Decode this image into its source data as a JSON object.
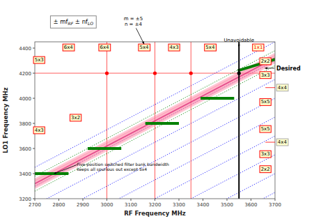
{
  "chart_data": {
    "type": "spur_chart",
    "xlabel": "RF Frequency MHz",
    "ylabel": "LO1 Frequency MHz",
    "xlim": [
      2700,
      3700
    ],
    "ylim": [
      3200,
      4450
    ],
    "xticks": [
      2700,
      2800,
      2900,
      3000,
      3100,
      3200,
      3300,
      3400,
      3500,
      3600,
      3700
    ],
    "yticks": [
      3200,
      3400,
      3600,
      3800,
      4000,
      4200,
      4400
    ],
    "grid": false,
    "box_face": "#ffffcc",
    "blue_lines": {
      "color": "blue",
      "line_style": "dotted",
      "offsets": [
        -450,
        -300,
        -150,
        0,
        150,
        300,
        450,
        600,
        750
      ]
    },
    "green_lines": {
      "color": "green",
      "line_style": "dotted",
      "offsets": [
        560,
        680
      ]
    },
    "pink_band": {
      "color": "#ff80a0",
      "offsets": [
        590,
        605,
        620,
        635,
        650
      ]
    },
    "center_line": {
      "color": "#cc0066",
      "offset": 620
    },
    "filter_segments": {
      "color": "green",
      "segments": [
        [
          2700,
          3400,
          2840,
          3400
        ],
        [
          2920,
          3600,
          3060,
          3600
        ],
        [
          3160,
          3800,
          3300,
          3800
        ],
        [
          3390,
          4000,
          3530,
          4000
        ],
        [
          3545,
          4220,
          3700,
          4310
        ]
      ]
    },
    "hline": {
      "color": "red",
      "y": 4200
    },
    "red_vlines": {
      "color": "red",
      "x": [
        3000,
        3200,
        3350
      ]
    },
    "vertical_line": {
      "color": "black",
      "x": 3550
    },
    "red_dots": {
      "color": "red",
      "points": [
        [
          3000,
          4200
        ],
        [
          3200,
          4200
        ],
        [
          3350,
          4200
        ]
      ]
    },
    "black_dot": {
      "color": "black",
      "point": [
        3550,
        4200
      ]
    },
    "box_labels": [
      {
        "text": "6x4",
        "x": 2840,
        "y": 4405,
        "color": "red"
      },
      {
        "text": "6x4",
        "x": 2990,
        "y": 4405,
        "color": "red"
      },
      {
        "text": "5x4",
        "x": 3155,
        "y": 4405,
        "color": "red"
      },
      {
        "text": "4x3",
        "x": 3280,
        "y": 4405,
        "color": "red"
      },
      {
        "text": "5x4",
        "x": 3430,
        "y": 4405,
        "color": "red"
      },
      {
        "text": "1x1",
        "x": 3630,
        "y": 4405,
        "color": "red",
        "text_color": "red"
      },
      {
        "text": "5x3",
        "x": 2718,
        "y": 4305,
        "color": "red"
      },
      {
        "text": "3x2",
        "x": 2870,
        "y": 3845,
        "color": "red"
      },
      {
        "text": "4x3",
        "x": 2718,
        "y": 3745,
        "color": "red"
      },
      {
        "text": "2x2",
        "x": 3660,
        "y": 4295,
        "color": "red"
      },
      {
        "text": "3x3",
        "x": 3660,
        "y": 4185,
        "color": "red"
      },
      {
        "text": "5x5",
        "x": 3660,
        "y": 3970,
        "color": "red"
      },
      {
        "text": "5x5",
        "x": 3660,
        "y": 3755,
        "color": "red"
      },
      {
        "text": "3x3",
        "x": 3660,
        "y": 3555,
        "color": "red"
      },
      {
        "text": "2x2",
        "x": 3660,
        "y": 3435,
        "color": "red"
      },
      {
        "text": "4x4",
        "x": 3730,
        "y": 4085,
        "color": "#aaaaaa"
      },
      {
        "text": "4x4",
        "x": 3730,
        "y": 3650,
        "color": "#aaaaaa"
      }
    ],
    "connectors": {
      "color": "red",
      "lines": [
        [
          3660,
          4085,
          3700,
          4085
        ],
        [
          3660,
          3650,
          3700,
          3650
        ]
      ]
    },
    "formula": [
      {
        "text": "± mf"
      },
      {
        "text": "RF",
        "sub": true
      },
      {
        "text": " ± nf"
      },
      {
        "text": "LO",
        "sub": true
      }
    ],
    "mn_note": {
      "lines": [
        "m = ±5",
        "n = ±4"
      ],
      "arrow_to": [
        3155,
        4405
      ]
    },
    "unavoidable_note": {
      "lines": [
        "Unavoidable"
      ],
      "x": 3550,
      "y": 4438,
      "arrow_from": [
        3550,
        4430
      ],
      "arrow_to": [
        3550,
        4410
      ]
    },
    "desired_note": {
      "lines": [
        "Desired"
      ],
      "x": 3700,
      "y": 4240,
      "bold": true,
      "arrow_from": [
        3698,
        4240
      ],
      "arrow_to": [
        3658,
        4240
      ]
    },
    "filter_note": {
      "lines": [
        "Five-position switched filter bank bandwidth",
        "keeps all spurious out except 5x4"
      ],
      "x": 2875,
      "y": 3490,
      "arrow_from": [
        2875,
        3470
      ],
      "arrow_to": [
        2780,
        3400
      ]
    }
  }
}
